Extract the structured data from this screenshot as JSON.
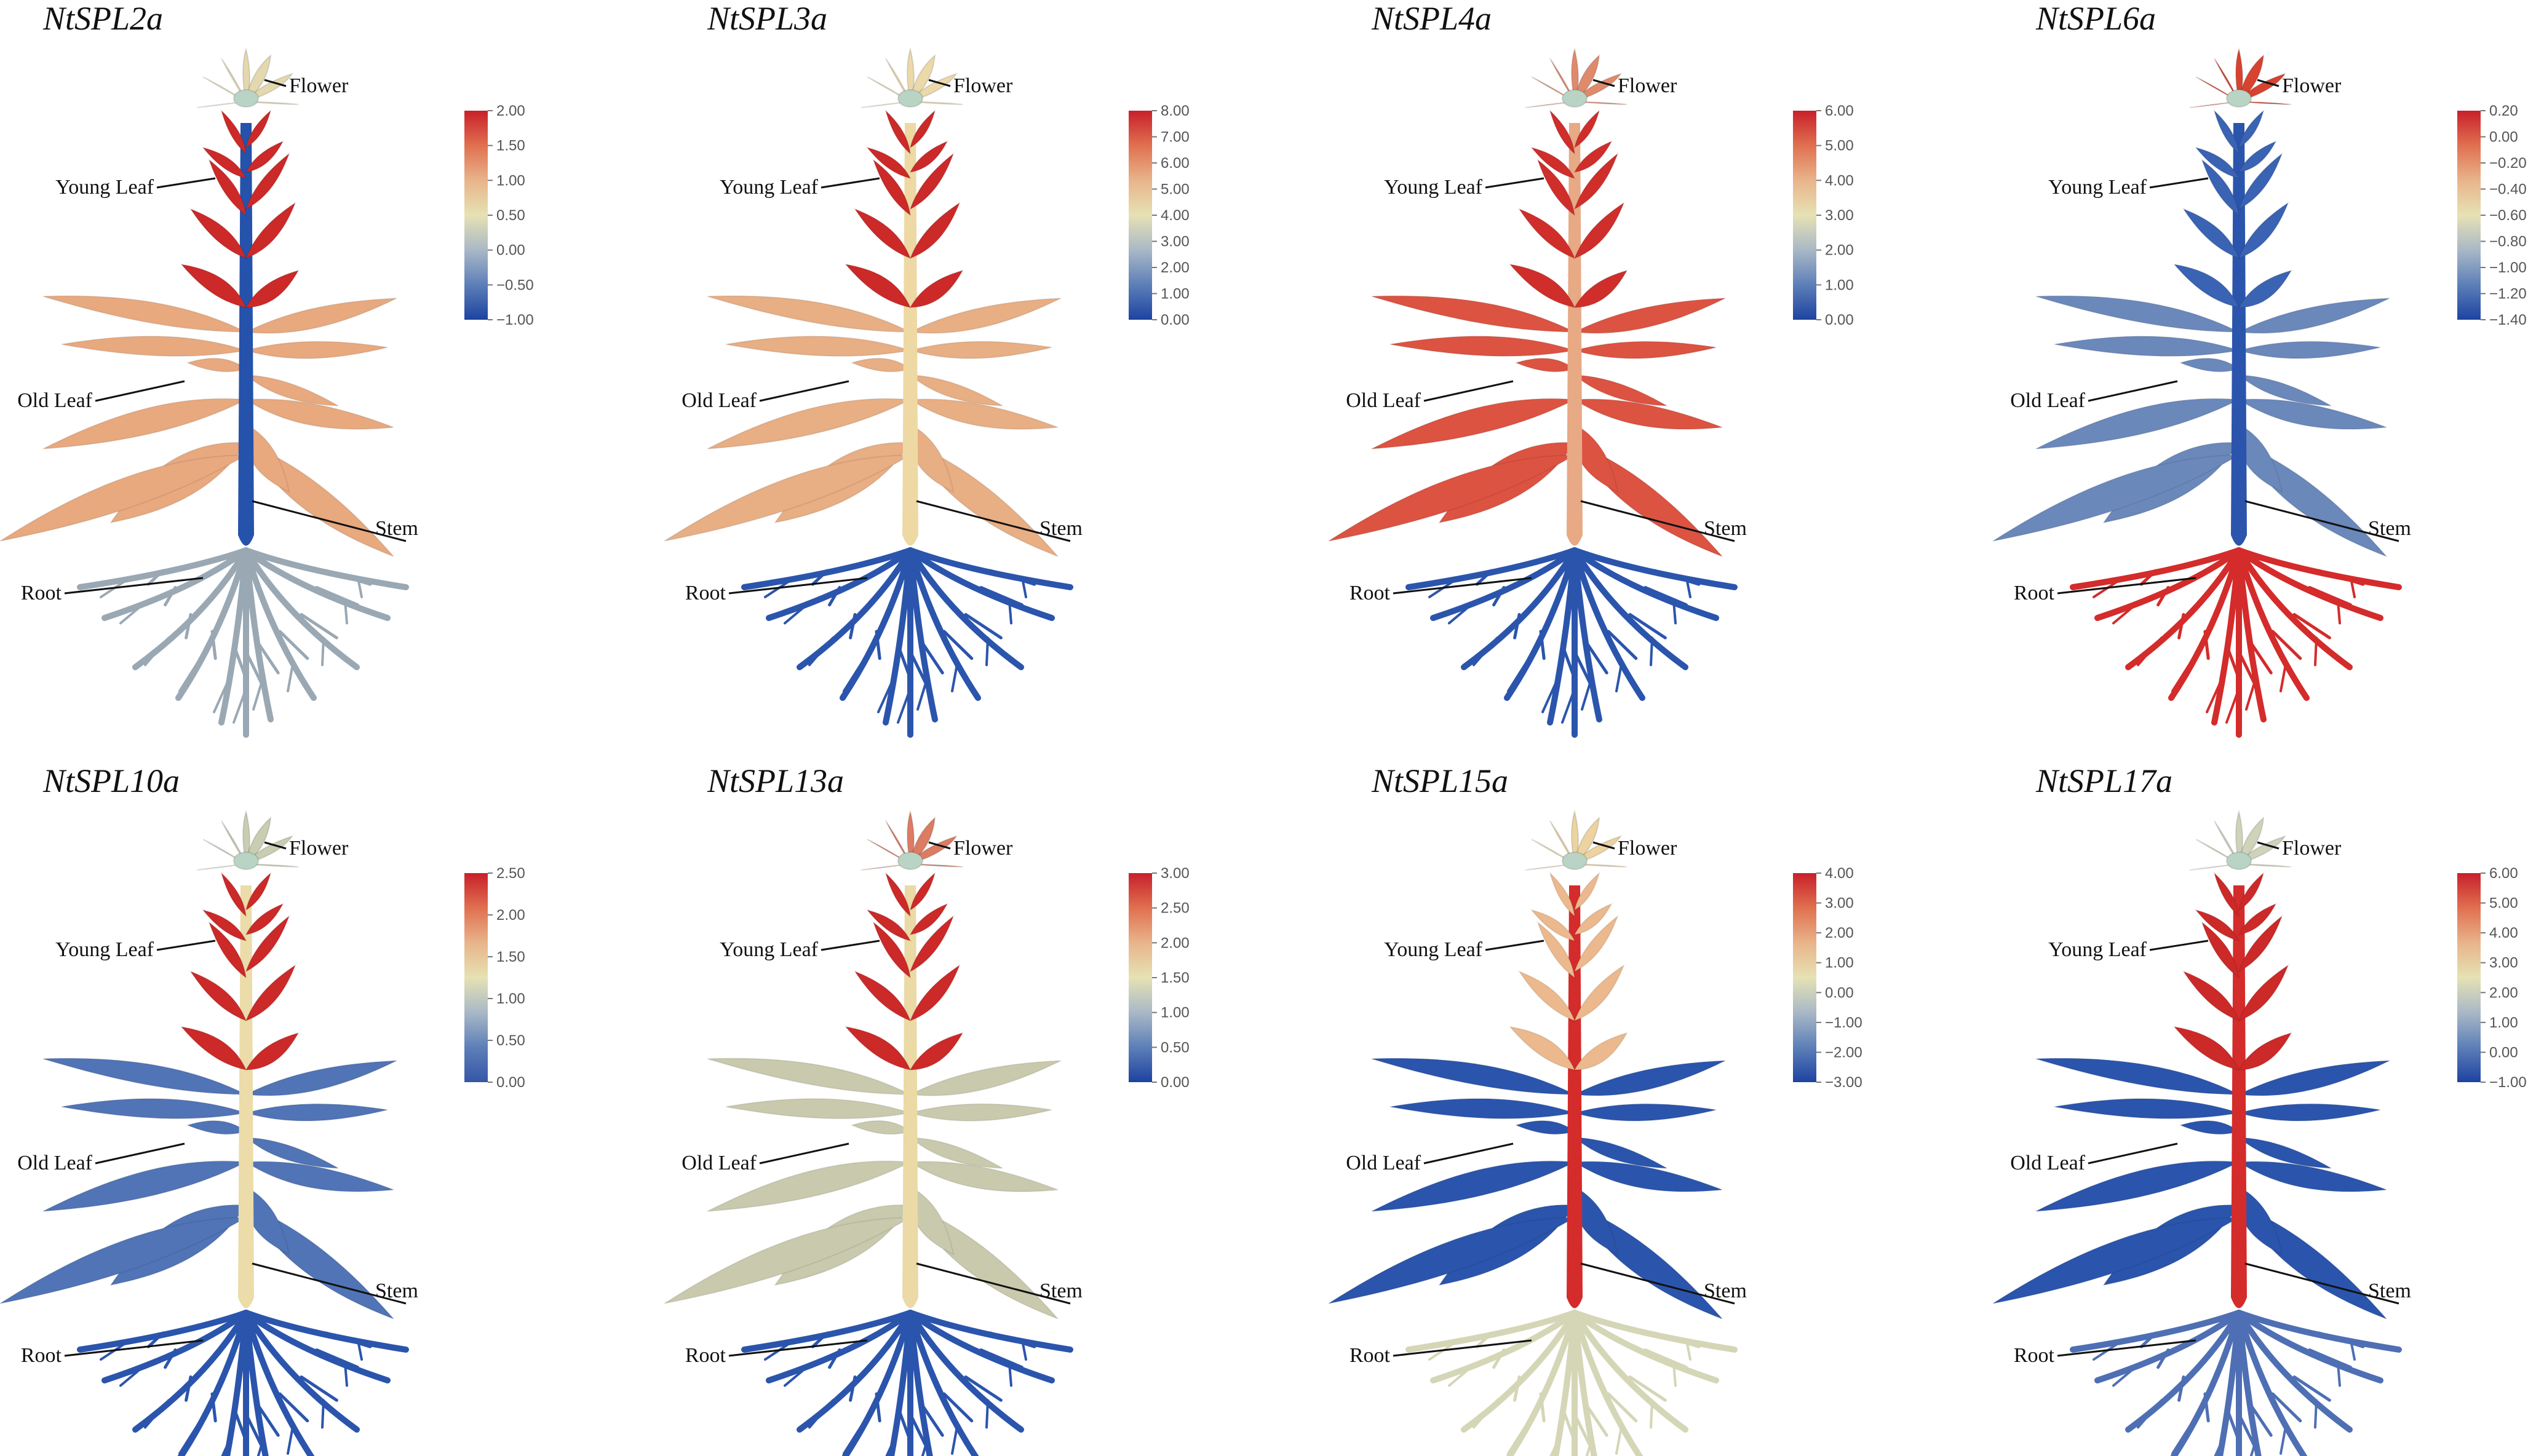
{
  "figure": {
    "organ_labels": {
      "flower": "Flower",
      "young_leaf": "Young Leaf",
      "old_leaf": "Old Leaf",
      "stem": "Stem",
      "root": "Root"
    },
    "panels": [
      {
        "gene": "NtSPL2a",
        "scale_ticks": [
          "2.00",
          "1.50",
          "1.00",
          "0.50",
          "0.00",
          "−0.50",
          "−1.00"
        ],
        "scale_colors": [
          "#c8202a",
          "#e07050",
          "#e8b48a",
          "#e6e2b4",
          "#a9b8c6",
          "#5d7fb8",
          "#1d43a0"
        ],
        "colors": {
          "flower": "#e4d8ae",
          "young_leaf": "#cc2929",
          "old_leaf": "#e8a97f",
          "stem": "#2552ab",
          "root": "#9aa8b4"
        }
      },
      {
        "gene": "NtSPL3a",
        "scale_ticks": [
          "8.00",
          "7.00",
          "6.00",
          "5.00",
          "4.00",
          "3.00",
          "2.00",
          "1.00",
          "0.00"
        ],
        "scale_colors": [
          "#c8202a",
          "#e07050",
          "#e8b48a",
          "#e6e2b4",
          "#a9b8c6",
          "#5d7fb8",
          "#1d43a0"
        ],
        "colors": {
          "flower": "#ecd9aa",
          "young_leaf": "#cc2929",
          "old_leaf": "#e8ae84",
          "stem": "#eed9a4",
          "root": "#2b55ac"
        }
      },
      {
        "gene": "NtSPL4a",
        "scale_ticks": [
          "6.00",
          "5.00",
          "4.00",
          "3.00",
          "2.00",
          "1.00",
          "0.00"
        ],
        "scale_colors": [
          "#c8202a",
          "#e07050",
          "#e8b48a",
          "#e6e2b4",
          "#a9b8c6",
          "#5d7fb8",
          "#1d43a0"
        ],
        "colors": {
          "flower": "#e08a6c",
          "young_leaf": "#cf2e2b",
          "old_leaf": "#dc5342",
          "stem": "#e8a985",
          "root": "#2b55ac"
        }
      },
      {
        "gene": "NtSPL6a",
        "scale_ticks": [
          "0.20",
          "0.00",
          "−0.20",
          "−0.40",
          "−0.60",
          "−0.80",
          "−1.00",
          "−1.20",
          "−1.40"
        ],
        "scale_colors": [
          "#c8202a",
          "#e07050",
          "#e8b48a",
          "#e6e2b4",
          "#a9b8c6",
          "#5d7fb8",
          "#1d43a0"
        ],
        "colors": {
          "flower": "#d8432f",
          "young_leaf": "#3a63b4",
          "old_leaf": "#6b88bb",
          "stem": "#2b55ac",
          "root": "#d42b2b"
        }
      },
      {
        "gene": "NtSPL10a",
        "scale_ticks": [
          "2.50",
          "2.00",
          "1.50",
          "1.00",
          "0.50",
          "0.00"
        ],
        "scale_colors": [
          "#c8202a",
          "#e07050",
          "#e8b48a",
          "#e6e2b4",
          "#a9b8c6",
          "#5d7fb8",
          "#3656a6"
        ],
        "colors": {
          "flower": "#c9cdb2",
          "young_leaf": "#cc2929",
          "old_leaf": "#5174b6",
          "stem": "#ebdca9",
          "root": "#2b55ac"
        }
      },
      {
        "gene": "NtSPL13a",
        "scale_ticks": [
          "3.00",
          "2.50",
          "2.00",
          "1.50",
          "1.00",
          "0.50",
          "0.00"
        ],
        "scale_colors": [
          "#c8202a",
          "#e07050",
          "#e8b48a",
          "#e6e2b4",
          "#a9b8c6",
          "#5d7fb8",
          "#1d43a0"
        ],
        "colors": {
          "flower": "#dc7c62",
          "young_leaf": "#cc2929",
          "old_leaf": "#c9c9ad",
          "stem": "#ebd9a6",
          "root": "#2b55ac"
        }
      },
      {
        "gene": "NtSPL15a",
        "scale_ticks": [
          "4.00",
          "3.00",
          "2.00",
          "1.00",
          "0.00",
          "−1.00",
          "−2.00",
          "−3.00"
        ],
        "scale_colors": [
          "#c8202a",
          "#e07050",
          "#e8b48a",
          "#e6e2b4",
          "#a9b8c6",
          "#5d7fb8",
          "#1d43a0"
        ],
        "colors": {
          "flower": "#ecd3a0",
          "young_leaf": "#ebb98d",
          "old_leaf": "#2b55ac",
          "stem": "#d42b2b",
          "root": "#d4d6b6"
        }
      },
      {
        "gene": "NtSPL17a",
        "scale_ticks": [
          "6.00",
          "5.00",
          "4.00",
          "3.00",
          "2.00",
          "1.00",
          "0.00",
          "−1.00"
        ],
        "scale_colors": [
          "#c8202a",
          "#e07050",
          "#e8b48a",
          "#e6e2b4",
          "#a9b8c6",
          "#5d7fb8",
          "#1d43a0"
        ],
        "colors": {
          "flower": "#cfd3ba",
          "young_leaf": "#cc2929",
          "old_leaf": "#2b55ac",
          "stem": "#d42b2b",
          "root": "#4f6fb4"
        }
      }
    ]
  }
}
